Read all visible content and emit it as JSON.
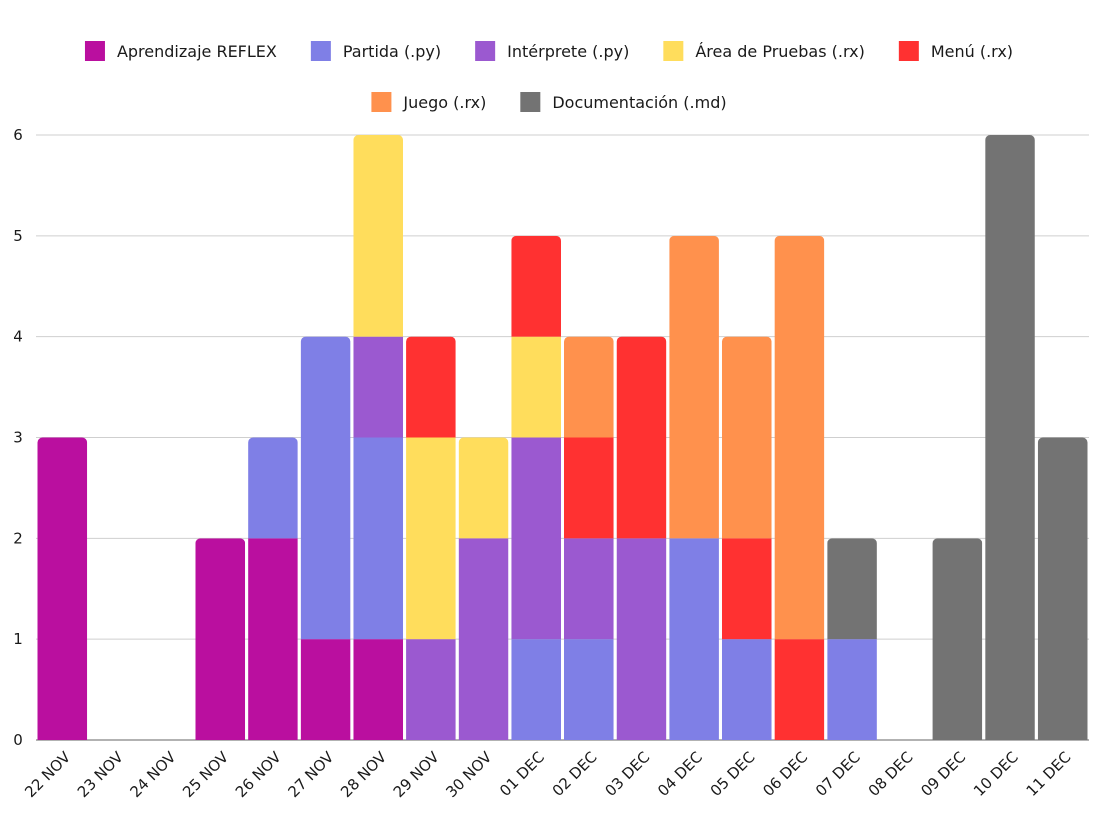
{
  "chart_data": {
    "type": "bar",
    "stacked": true,
    "title": "",
    "xlabel": "",
    "ylabel": "",
    "ylim": [
      0,
      6
    ],
    "yticks": [
      0,
      1,
      2,
      3,
      4,
      5,
      6
    ],
    "grid": true,
    "legend_position": "top",
    "categories": [
      "22 NOV",
      "23 NOV",
      "24 NOV",
      "25 NOV",
      "26 NOV",
      "27 NOV",
      "28 NOV",
      "29 NOV",
      "30 NOV",
      "01 DEC",
      "02 DEC",
      "03 DEC",
      "04 DEC",
      "05 DEC",
      "06 DEC",
      "07 DEC",
      "08 DEC",
      "09 DEC",
      "10 DEC",
      "11 DEC"
    ],
    "series": [
      {
        "name": "Aprendizaje REFLEX",
        "color": "#BA0F9F",
        "values": [
          3,
          0,
          0,
          2,
          2,
          1,
          1,
          0,
          0,
          0,
          0,
          0,
          0,
          0,
          0,
          0,
          0,
          0,
          0,
          0
        ]
      },
      {
        "name": "Partida (.py)",
        "color": "#7F7FE6",
        "values": [
          0,
          0,
          0,
          0,
          1,
          3,
          2,
          0,
          0,
          1,
          1,
          0,
          2,
          1,
          0,
          1,
          0,
          0,
          0,
          0
        ]
      },
      {
        "name": "Intérprete (.py)",
        "color": "#9B59D0",
        "values": [
          0,
          0,
          0,
          0,
          0,
          0,
          1,
          1,
          2,
          2,
          1,
          2,
          0,
          0,
          0,
          0,
          0,
          0,
          0,
          0
        ]
      },
      {
        "name": "Área de Pruebas (.rx)",
        "color": "#FFDD5C",
        "values": [
          0,
          0,
          0,
          0,
          0,
          0,
          2,
          2,
          1,
          1,
          0,
          0,
          0,
          0,
          0,
          0,
          0,
          0,
          0,
          0
        ]
      },
      {
        "name": "Menú (.rx)",
        "color": "#FF3131",
        "values": [
          0,
          0,
          0,
          0,
          0,
          0,
          0,
          1,
          0,
          1,
          1,
          2,
          0,
          1,
          1,
          0,
          0,
          0,
          0,
          0
        ]
      },
      {
        "name": "Juego (.rx)",
        "color": "#FF914D",
        "values": [
          0,
          0,
          0,
          0,
          0,
          0,
          0,
          0,
          0,
          0,
          1,
          0,
          3,
          2,
          4,
          0,
          0,
          0,
          0,
          0
        ]
      },
      {
        "name": "Documentación (.md)",
        "color": "#737373",
        "values": [
          0,
          0,
          0,
          0,
          0,
          0,
          0,
          0,
          0,
          0,
          0,
          0,
          0,
          0,
          0,
          1,
          0,
          2,
          6,
          3
        ]
      }
    ]
  }
}
